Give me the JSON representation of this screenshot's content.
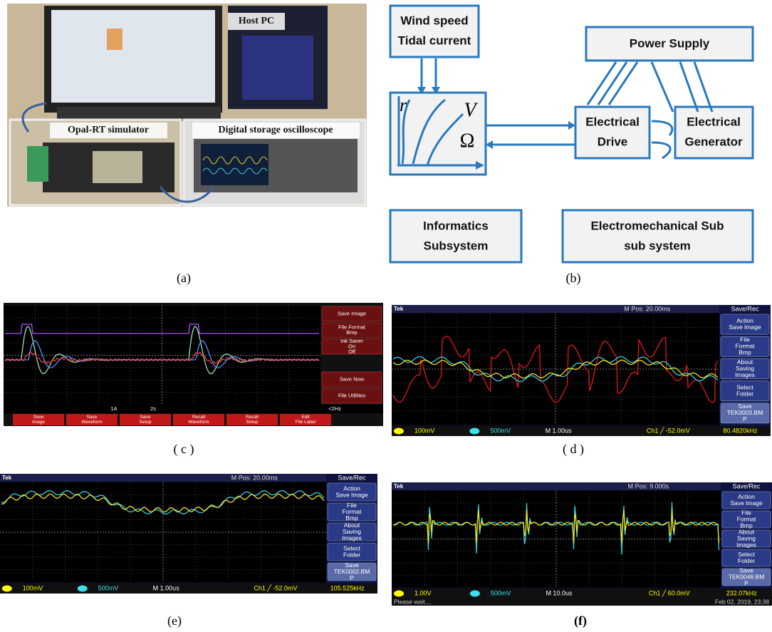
{
  "panel_a": {
    "labels": [
      "Host PC",
      "Opal-RT simulator",
      "Digital storage oscilloscope"
    ],
    "caption": "(a)"
  },
  "panel_b": {
    "nodes": [
      [
        "Wind speed",
        "Tidal current"
      ],
      [
        "Power Supply"
      ],
      [
        "Electrical",
        "Drive"
      ],
      [
        "Electrical",
        "Generator"
      ],
      [
        "Informatics",
        "Subsystem"
      ],
      [
        "Electromechanical Sub",
        "sub system"
      ]
    ],
    "symbols": [
      "r",
      "V",
      "Ω"
    ],
    "caption": "(b)"
  },
  "panel_c": {
    "menu": [
      [
        "Save Image"
      ],
      [
        "File Format",
        "Bmp"
      ],
      [
        "Ink Saver",
        "On",
        "Off"
      ],
      [
        "Save Now"
      ],
      [
        "File Utilities"
      ]
    ],
    "buttons": [
      [
        "Save",
        "Image"
      ],
      [
        "Save",
        "Waveform"
      ],
      [
        "Save",
        "Setup"
      ],
      [
        "Recall",
        "Waveform"
      ],
      [
        "Recall",
        "Setup"
      ],
      [
        "Edit",
        "File Label"
      ]
    ],
    "status": [
      "1A",
      "2s",
      "<2Hz"
    ],
    "caption": "( c )"
  },
  "panel_d": {
    "brand": "Tek",
    "position": "M Pos: 20.00ms",
    "menu_title": "Save/Rec",
    "menu": [
      [
        "Action",
        "Save Image"
      ],
      [
        "File",
        "Format",
        "Bmp"
      ],
      [
        "About",
        "Saving",
        "Images"
      ],
      [
        "Select",
        "Folder"
      ],
      [
        "Save",
        "TEK0003.BM",
        "P"
      ]
    ],
    "status": [
      "100mV",
      "500mV",
      "M 1.00us",
      "Ch1 ╱ -52.0mV",
      "80.4820kHz"
    ],
    "caption": "( d )"
  },
  "panel_e": {
    "brand": "Tek",
    "position": "M Pos: 20.00ms",
    "menu_title": "Save/Rec",
    "menu": [
      [
        "Action",
        "Save Image"
      ],
      [
        "File",
        "Format",
        "Bmp"
      ],
      [
        "About",
        "Saving",
        "Images"
      ],
      [
        "Select",
        "Folder"
      ],
      [
        "Save",
        "TEK0002.BM",
        "P"
      ]
    ],
    "status": [
      "100mV",
      "500mV",
      "M 1.00us",
      "Ch1 ╱ -52.0mV",
      "105.525kHz"
    ],
    "caption": "(e)"
  },
  "panel_f": {
    "brand": "Tek",
    "position": "M Pos: 9.000s",
    "menu_title": "Save/Rec",
    "menu": [
      [
        "Action",
        "Save Image"
      ],
      [
        "File",
        "Format",
        "Bmp"
      ],
      [
        "About",
        "Saving",
        "Images"
      ],
      [
        "Select",
        "Folder"
      ],
      [
        "Save",
        "TEK0048.BM",
        "P"
      ]
    ],
    "status": [
      "1.00V",
      "500mV",
      "M 10.0us",
      "Ch1 ╱ 60.0mV",
      "232.07kHz"
    ],
    "footer": [
      "Please wait....",
      "Feb 02, 2019, 23:38"
    ],
    "caption": "(f)"
  }
}
